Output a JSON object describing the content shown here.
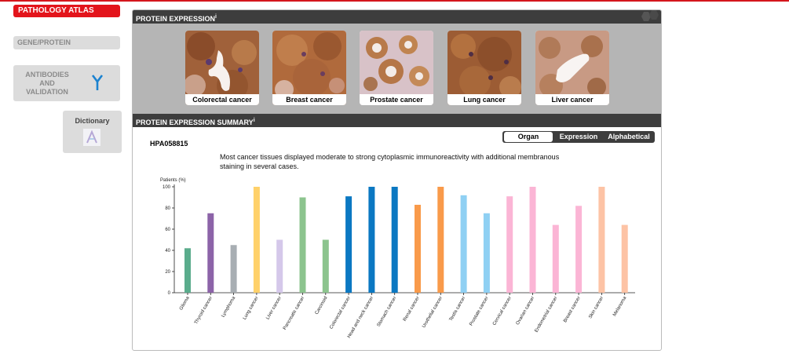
{
  "nav": {
    "pathology_atlas": "PATHOLOGY ATLAS",
    "gene_protein": "GENE/PROTEIN",
    "antibodies_lines": [
      "ANTIBODIES",
      "AND",
      "VALIDATION"
    ],
    "dictionary": "Dictionary"
  },
  "protein_expression": {
    "title": "PROTEIN EXPRESSION",
    "info_mark": "i",
    "thumbnails": [
      {
        "label": "Colorectal cancer"
      },
      {
        "label": "Breast cancer"
      },
      {
        "label": "Prostate cancer"
      },
      {
        "label": "Lung cancer"
      },
      {
        "label": "Liver cancer"
      }
    ]
  },
  "summary": {
    "title": "PROTEIN EXPRESSION SUMMARY",
    "info_mark": "i",
    "antibody_id": "HPA058815",
    "tabs": [
      "Organ",
      "Expression",
      "Alphabetical"
    ],
    "active_tab": "Organ",
    "description": "Most cancer tissues displayed moderate to strong cytoplasmic immunoreactivity with additional membranous staining in several cases."
  },
  "chart_data": {
    "type": "bar",
    "ylabel": "Patients (%)",
    "ylim": [
      0,
      100
    ],
    "yticks": [
      0,
      20,
      40,
      60,
      80,
      100
    ],
    "categories": [
      "Glioma",
      "Thyroid cancer",
      "Lymphoma",
      "Lung cancer",
      "Liver cancer",
      "Pancreatic cancer",
      "Carcinoid",
      "Colorectal cancer",
      "Head and neck cancer",
      "Stomach cancer",
      "Renal cancer",
      "Urothelial cancer",
      "Testis cancer",
      "Prostate cancer",
      "Cervical cancer",
      "Ovarian cancer",
      "Endometrial cancer",
      "Breast cancer",
      "Skin cancer",
      "Melanoma"
    ],
    "values": [
      42,
      75,
      45,
      100,
      50,
      90,
      50,
      91,
      100,
      100,
      83,
      100,
      92,
      75,
      91,
      100,
      64,
      82,
      100,
      64
    ],
    "colors": [
      "#5aac8c",
      "#8c63a8",
      "#a8aeb3",
      "#ffd16a",
      "#d5c8ea",
      "#8cc48e",
      "#8cc48e",
      "#0b78c2",
      "#0b78c2",
      "#0b78c2",
      "#f99a4a",
      "#f99a4a",
      "#8fd0f3",
      "#8fd0f3",
      "#fbb5d5",
      "#fbb5d5",
      "#fbb5d5",
      "#fbb5d5",
      "#fdc3a5",
      "#fdc3a5"
    ]
  },
  "colors": {
    "brand_red": "#e3141b",
    "header_dark": "#3d3d3d"
  }
}
